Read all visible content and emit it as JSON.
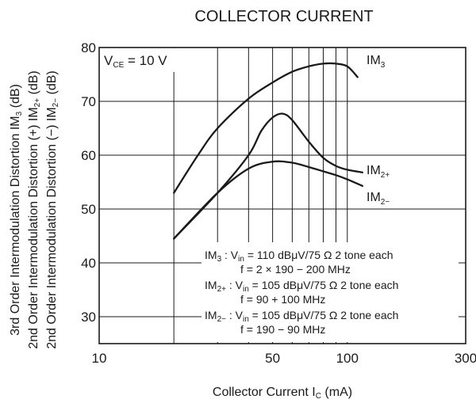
{
  "chart_data": {
    "type": "line",
    "title": "COLLECTOR CURRENT",
    "xlabel": {
      "main": "Collector Current  I",
      "sub": "C",
      "unit": " (mA)"
    },
    "ylabels": [
      {
        "text": "3rd Order Intermodulation Distortion  IM",
        "sub": "3",
        "unit": " (dB)"
      },
      {
        "text": "2nd Order Intermodulation Distortion (+)  IM",
        "sub": "2+",
        "unit": " (dB)"
      },
      {
        "text": "2nd Order Intermodulation Distortion (−)  IM",
        "sub": "2−",
        "unit": " (dB)"
      }
    ],
    "xscale": "log",
    "xlim": [
      10,
      300
    ],
    "ylim": [
      25,
      80
    ],
    "xticks": [
      {
        "value": 10,
        "label": "10"
      },
      {
        "value": 50,
        "label": "50"
      },
      {
        "value": 100,
        "label": "100"
      },
      {
        "value": 300,
        "label": "300"
      }
    ],
    "yticks": [
      30,
      40,
      50,
      60,
      70,
      80
    ],
    "xgrid": [
      20,
      30,
      40,
      50,
      60,
      70,
      80,
      90,
      100
    ],
    "condition": {
      "prefix": "V",
      "sub": "CE",
      "suffix": " = 10 V"
    },
    "series": [
      {
        "name": "IM",
        "sub": "3",
        "x": [
          20,
          25,
          30,
          40,
          50,
          60,
          70,
          80,
          90,
          100,
          110
        ],
        "y": [
          53,
          60,
          65,
          70.5,
          73.5,
          75.5,
          76.5,
          77,
          77,
          76.5,
          74.5
        ]
      },
      {
        "name": "IM",
        "sub": "2+",
        "x": [
          20,
          30,
          40,
          45,
          50,
          55,
          60,
          70,
          80,
          90,
          100,
          115
        ],
        "y": [
          44.5,
          53,
          60,
          64.5,
          67,
          67.7,
          66.5,
          62.5,
          59.5,
          58,
          57.3,
          56.8
        ]
      },
      {
        "name": "IM",
        "sub": "2−",
        "x": [
          20,
          30,
          40,
          50,
          60,
          70,
          80,
          90,
          100,
          115
        ],
        "y": [
          44.5,
          53,
          57.5,
          58.8,
          58.6,
          57.8,
          57,
          56.3,
          55.5,
          54.3
        ]
      }
    ],
    "notes": [
      {
        "label": "IM",
        "sub": "3",
        "text": " : V",
        "vsub": "in",
        "rest": " = 110 dBμV/75 Ω 2 tone each",
        "freq": "f = 2 × 190 − 200 MHz"
      },
      {
        "label": "IM",
        "sub": "2+",
        "text": " : V",
        "vsub": "in",
        "rest": " = 105 dBμV/75 Ω 2 tone each",
        "freq": "f = 90 + 100 MHz"
      },
      {
        "label": "IM",
        "sub": "2−",
        "text": " : V",
        "vsub": "in",
        "rest": " = 105 dBμV/75 Ω 2 tone each",
        "freq": "f = 190 − 90 MHz"
      }
    ],
    "colors": {
      "line": "#1a1a1a",
      "grid": "#1a1a1a",
      "background": "#ffffff"
    }
  }
}
